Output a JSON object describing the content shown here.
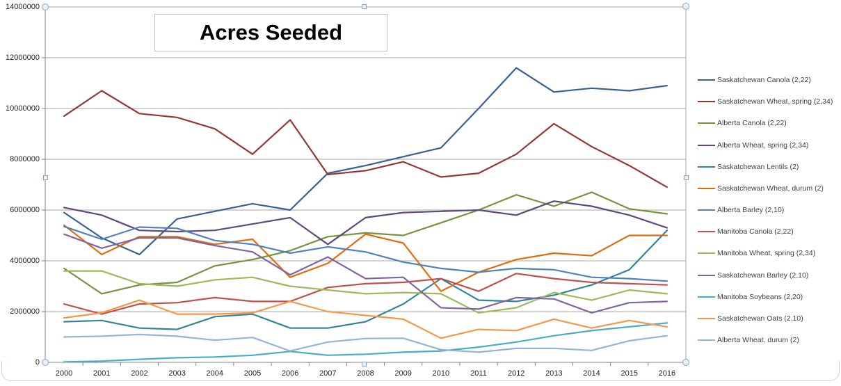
{
  "chart_data": {
    "type": "line",
    "title": "Acres Seeded",
    "x": [
      2000,
      2001,
      2002,
      2003,
      2004,
      2005,
      2006,
      2007,
      2008,
      2009,
      2010,
      2011,
      2012,
      2013,
      2014,
      2015,
      2016
    ],
    "x_tick_labels": [
      "2000",
      "2001",
      "2002",
      "2003",
      "2004",
      "2005",
      "2006",
      "2007",
      "2008",
      "2009",
      "2010",
      "2011",
      "2012",
      "2013",
      "2014",
      "2015",
      "2016"
    ],
    "y_tick_labels": [
      "0",
      "2000000",
      "4000000",
      "6000000",
      "8000000",
      "10000000",
      "12000000",
      "14000000"
    ],
    "ylim": [
      0,
      14000000
    ],
    "y_tick_step": 2000000,
    "ylabel": "",
    "xlabel": "",
    "grid": true,
    "legend_position": "right",
    "series": [
      {
        "name": "Saskatchewan Canola (2,22)",
        "color": "#376092",
        "values": [
          5900000,
          4900000,
          4250000,
          5650000,
          5950000,
          6250000,
          6000000,
          7450000,
          7750000,
          8100000,
          8450000,
          10000000,
          11600000,
          10650000,
          10800000,
          10700000,
          10900000
        ]
      },
      {
        "name": "Saskatchewan Wheat, spring (2,34)",
        "color": "#943634",
        "values": [
          9700000,
          10700000,
          9800000,
          9650000,
          9200000,
          8200000,
          9550000,
          7400000,
          7550000,
          7900000,
          7300000,
          7450000,
          8200000,
          9400000,
          8500000,
          7750000,
          6900000
        ]
      },
      {
        "name": "Alberta Canola (2,22)",
        "color": "#76923C",
        "values": [
          3700000,
          2700000,
          3050000,
          3150000,
          3800000,
          4050000,
          4400000,
          4950000,
          5100000,
          5000000,
          5500000,
          6000000,
          6600000,
          6150000,
          6700000,
          6050000,
          5850000
        ]
      },
      {
        "name": "Alberta Wheat, spring (2,34)",
        "color": "#60497A",
        "values": [
          6100000,
          5800000,
          5200000,
          5150000,
          5200000,
          5450000,
          5700000,
          4650000,
          5700000,
          5900000,
          5950000,
          6000000,
          5800000,
          6350000,
          6150000,
          5800000,
          5300000
        ]
      },
      {
        "name": "Saskatchewan Lentils (2)",
        "color": "#31849B",
        "values": [
          1600000,
          1650000,
          1350000,
          1300000,
          1800000,
          1900000,
          1350000,
          1350000,
          1600000,
          2300000,
          3300000,
          2450000,
          2400000,
          2650000,
          3050000,
          3650000,
          5200000
        ]
      },
      {
        "name": "Saskatchewan Wheat, durum (2)",
        "color": "#E36C0A",
        "values": [
          5400000,
          4250000,
          4950000,
          4950000,
          4650000,
          4850000,
          3350000,
          3900000,
          5050000,
          4700000,
          2800000,
          3550000,
          4050000,
          4300000,
          4200000,
          5000000,
          5000000
        ]
      },
      {
        "name": "Alberta Barley (2,10)",
        "color": "#4F81BD",
        "values": [
          5350000,
          4850000,
          5330000,
          5280000,
          4800000,
          4650000,
          4300000,
          4550000,
          4350000,
          3950000,
          3700000,
          3550000,
          3700000,
          3650000,
          3350000,
          3300000,
          3200000
        ]
      },
      {
        "name": "Manitoba Canola (2,22)",
        "color": "#C0504D",
        "values": [
          2300000,
          1900000,
          2300000,
          2350000,
          2550000,
          2400000,
          2400000,
          2950000,
          3100000,
          3150000,
          3300000,
          2800000,
          3500000,
          3300000,
          3150000,
          3100000,
          3050000
        ]
      },
      {
        "name": "Manitoba Wheat, spring (2,34)",
        "color": "#9BBB59",
        "values": [
          3600000,
          3600000,
          3100000,
          3000000,
          3250000,
          3350000,
          3000000,
          2850000,
          2700000,
          2750000,
          2700000,
          1950000,
          2150000,
          2750000,
          2450000,
          2850000,
          2700000
        ]
      },
      {
        "name": "Saskatchewan Barley (2,10)",
        "color": "#8064A2",
        "values": [
          5050000,
          4500000,
          4900000,
          4900000,
          4600000,
          4350000,
          3450000,
          4150000,
          3300000,
          3350000,
          2150000,
          2100000,
          2550000,
          2500000,
          1950000,
          2350000,
          2400000
        ]
      },
      {
        "name": "Manitoba Soybeans (2,20)",
        "color": "#4BACC6",
        "values": [
          20000,
          50000,
          120000,
          180000,
          210000,
          280000,
          430000,
          280000,
          320000,
          400000,
          450000,
          600000,
          800000,
          1050000,
          1250000,
          1400000,
          1550000
        ]
      },
      {
        "name": "Saskatchewan Oats (2,10)",
        "color": "#F79646",
        "values": [
          1750000,
          1950000,
          2450000,
          1900000,
          1900000,
          1950000,
          2400000,
          2000000,
          1850000,
          1700000,
          950000,
          1300000,
          1250000,
          1700000,
          1350000,
          1650000,
          1400000
        ]
      },
      {
        "name": "Alberta Wheat, durum (2)",
        "color": "#95B3D7",
        "values": [
          1000000,
          1030000,
          1100000,
          1030000,
          870000,
          980000,
          450000,
          800000,
          940000,
          950000,
          500000,
          400000,
          550000,
          550000,
          470000,
          850000,
          1050000
        ]
      }
    ]
  },
  "styles": {
    "gridline_color": "#a6a6a6",
    "axis_color": "#808080",
    "plot_right_border_color": "#a6a6a6"
  }
}
